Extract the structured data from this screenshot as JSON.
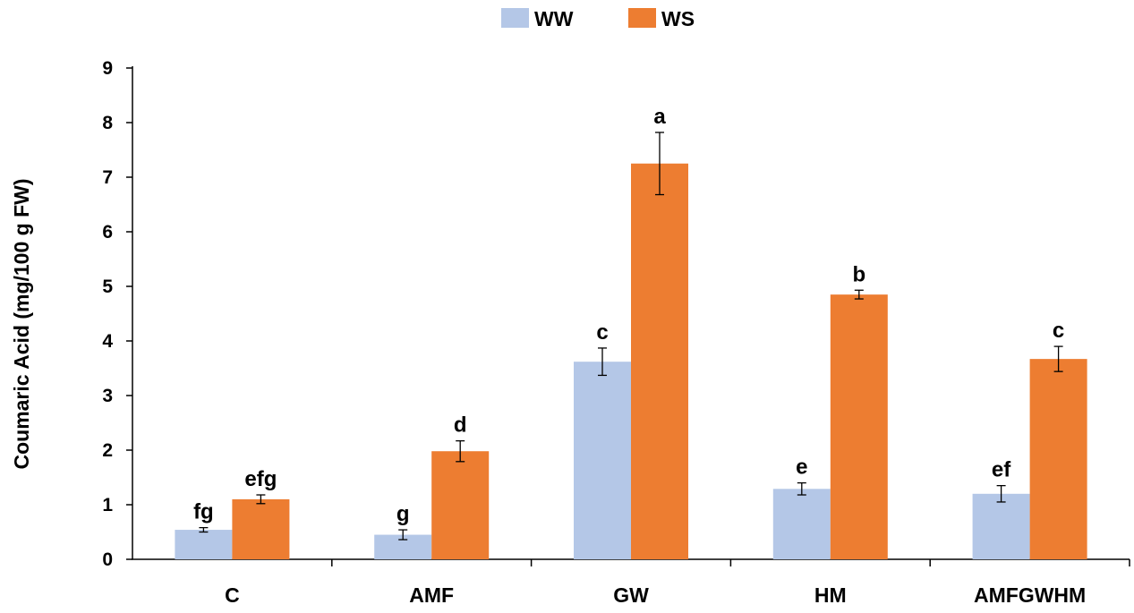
{
  "chart_data": {
    "type": "bar",
    "title": "",
    "xlabel": "",
    "ylabel": "Coumaric Acid (mg/100 g FW)",
    "ylim": [
      0,
      9
    ],
    "yticks": [
      0,
      1,
      2,
      3,
      4,
      5,
      6,
      7,
      8,
      9
    ],
    "categories": [
      "C",
      "AMF",
      "GW",
      "HM",
      "AMFGWHM"
    ],
    "legend_position": "top-center",
    "grid": false,
    "series": [
      {
        "name": "WW",
        "color": "#B4C7E7",
        "values": [
          0.54,
          0.45,
          3.62,
          1.29,
          1.2
        ],
        "errors": [
          0.04,
          0.09,
          0.25,
          0.11,
          0.15
        ],
        "labels": [
          "fg",
          "g",
          "c",
          "e",
          "ef"
        ]
      },
      {
        "name": "WS",
        "color": "#ED7D31",
        "values": [
          1.1,
          1.98,
          7.25,
          4.85,
          3.67
        ],
        "errors": [
          0.08,
          0.19,
          0.57,
          0.08,
          0.23
        ],
        "labels": [
          "efg",
          "d",
          "a",
          "b",
          "c"
        ]
      }
    ]
  }
}
